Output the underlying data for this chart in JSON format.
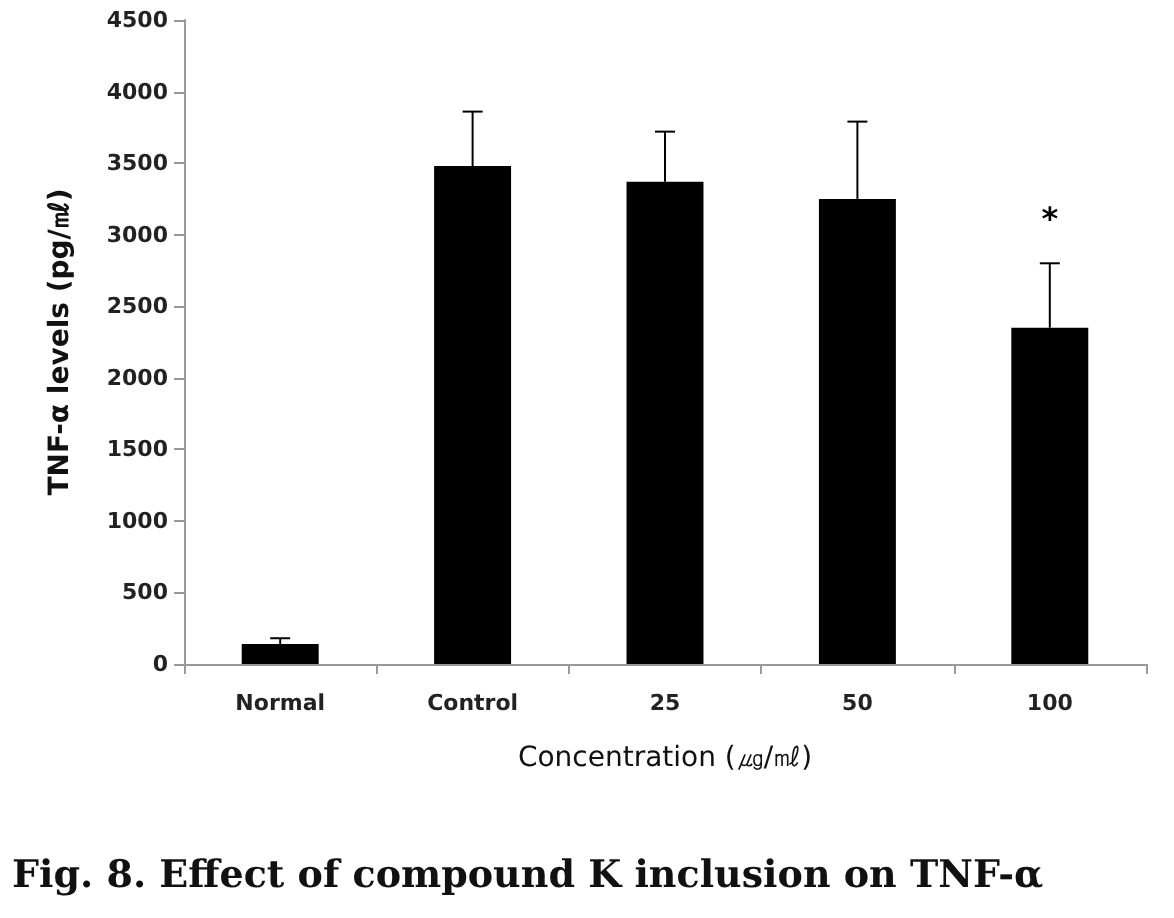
{
  "chart_data": {
    "type": "bar",
    "xlabel": "Concentration (㎍/㎖)",
    "ylabel": "TNF-α levels (pg/㎖)",
    "categories": [
      "Normal",
      "Control",
      "25",
      "50",
      "100"
    ],
    "values": [
      140,
      3480,
      3370,
      3250,
      2350
    ],
    "errors": [
      [
        140,
        180
      ],
      [
        3480,
        3860
      ],
      [
        3370,
        3720
      ],
      [
        3250,
        3790
      ],
      [
        2350,
        2800
      ]
    ],
    "color": "#000000",
    "ylim": [
      0,
      4500
    ],
    "yticks": [
      0,
      500,
      1000,
      1500,
      2000,
      2500,
      3000,
      3500,
      4000,
      4500
    ],
    "grid": false,
    "annotations": [
      "*",
      "Fig. 8. Effect of compound K inclusion on TNF-α"
    ]
  }
}
